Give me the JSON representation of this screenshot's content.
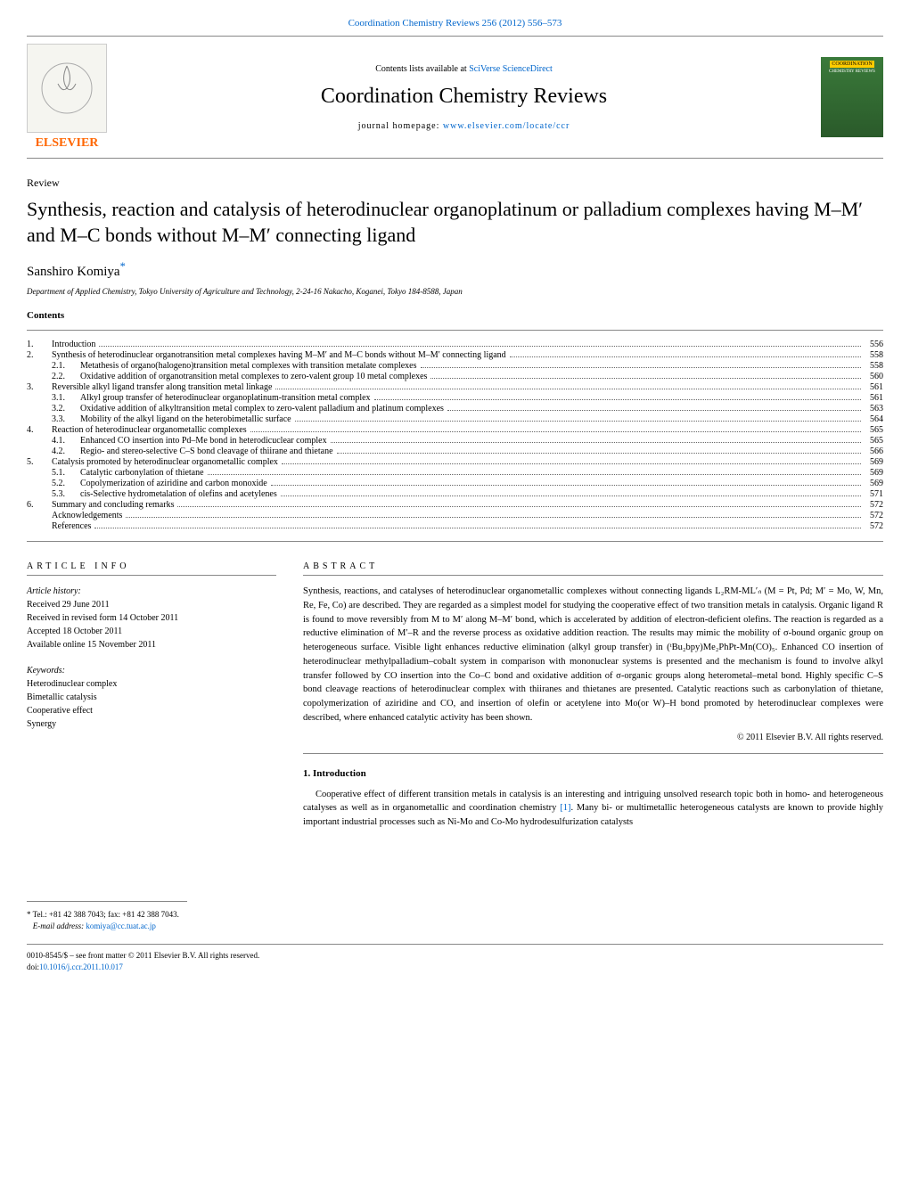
{
  "top_link": "Coordination Chemistry Reviews 256 (2012) 556–573",
  "header": {
    "contents_prefix": "Contents lists available at ",
    "contents_link": "SciVerse ScienceDirect",
    "journal_title": "Coordination Chemistry Reviews",
    "homepage_prefix": "journal homepage: ",
    "homepage_link": "www.elsevier.com/locate/ccr",
    "publisher": "ELSEVIER",
    "cover_label": "COORDINATION",
    "cover_sublabel": "CHEMISTRY REVIEWS"
  },
  "article_type": "Review",
  "title": "Synthesis, reaction and catalysis of heterodinuclear organoplatinum or palladium complexes having M–M′ and M–C bonds without M–M′ connecting ligand",
  "author": "Sanshiro Komiya",
  "author_mark": "*",
  "affiliation": "Department of Applied Chemistry, Tokyo University of Agriculture and Technology, 2-24-16 Nakacho, Koganei, Tokyo 184-8588, Japan",
  "contents_heading": "Contents",
  "toc": [
    {
      "num": "1.",
      "label": "Introduction",
      "page": "556"
    },
    {
      "num": "2.",
      "label": "Synthesis of heterodinuclear organotransition metal complexes having M–M′ and M–C bonds without M–M′ connecting ligand",
      "page": "558"
    },
    {
      "sub": "2.1.",
      "label": "Metathesis of organo(halogeno)transition metal complexes with transition metalate complexes",
      "page": "558"
    },
    {
      "sub": "2.2.",
      "label": "Oxidative addition of organotransition metal complexes to zero-valent group 10 metal complexes",
      "page": "560"
    },
    {
      "num": "3.",
      "label": "Reversible alkyl ligand transfer along transition metal linkage",
      "page": "561"
    },
    {
      "sub": "3.1.",
      "label": "Alkyl group transfer of heterodinuclear organoplatinum-transition metal complex",
      "page": "561"
    },
    {
      "sub": "3.2.",
      "label": "Oxidative addition of alkyltransition metal complex to zero-valent palladium and platinum complexes",
      "page": "563"
    },
    {
      "sub": "3.3.",
      "label": "Mobility of the alkyl ligand on the heterobimetallic surface",
      "page": "564"
    },
    {
      "num": "4.",
      "label": "Reaction of heterodinuclear organometallic complexes",
      "page": "565"
    },
    {
      "sub": "4.1.",
      "label": "Enhanced CO insertion into Pd–Me bond in heterodicuclear complex",
      "page": "565"
    },
    {
      "sub": "4.2.",
      "label": "Regio- and stereo-selective C–S bond cleavage of thiirane and thietane",
      "page": "566"
    },
    {
      "num": "5.",
      "label": "Catalysis promoted by heterodinuclear organometallic complex",
      "page": "569"
    },
    {
      "sub": "5.1.",
      "label": "Catalytic carbonylation of thietane",
      "page": "569"
    },
    {
      "sub": "5.2.",
      "label": "Copolymerization of aziridine and carbon monoxide",
      "page": "569"
    },
    {
      "sub": "5.3.",
      "label": "cis-Selective hydrometalation of olefins and acetylenes",
      "page": "571"
    },
    {
      "num": "6.",
      "label": "Summary and concluding remarks",
      "page": "572"
    },
    {
      "num": "",
      "label": "Acknowledgements",
      "page": "572"
    },
    {
      "num": "",
      "label": "References",
      "page": "572"
    }
  ],
  "info_heading": "ARTICLE INFO",
  "abstract_heading": "ABSTRACT",
  "history": {
    "label": "Article history:",
    "received": "Received 29 June 2011",
    "revised": "Received in revised form 14 October 2011",
    "accepted": "Accepted 18 October 2011",
    "online": "Available online 15 November 2011"
  },
  "keywords": {
    "label": "Keywords:",
    "items": [
      "Heterodinuclear complex",
      "Bimetallic catalysis",
      "Cooperative effect",
      "Synergy"
    ]
  },
  "abstract": "Synthesis, reactions, and catalyses of heterodinuclear organometallic complexes without connecting ligands L₂RM-ML′ₙ (M = Pt, Pd; M′ = Mo, W, Mn, Re, Fe, Co) are described. They are regarded as a simplest model for studying the cooperative effect of two transition metals in catalysis. Organic ligand R is found to move reversibly from M to M′ along M–M′ bond, which is accelerated by addition of electron-deficient olefins. The reaction is regarded as a reductive elimination of M′–R and the reverse process as oxidative addition reaction. The results may mimic the mobility of σ-bound organic group on heterogeneous surface. Visible light enhances reductive elimination (alkyl group transfer) in (ᵗBu₂bpy)Me₂PhPt-Mn(CO)₅. Enhanced CO insertion of heterodinuclear methylpalladium–cobalt system in comparison with mononuclear systems is presented and the mechanism is found to involve alkyl transfer followed by CO insertion into the Co–C bond and oxidative addition of σ-organic groups along heterometal–metal bond. Highly specific C–S bond cleavage reactions of heterodinuclear complex with thiiranes and thietanes are presented. Catalytic reactions such as carbonylation of thietane, copolymerization of aziridine and CO, and insertion of olefin or acetylene into Mo(or W)–H bond promoted by heterodinuclear complexes were described, where enhanced catalytic activity has been shown.",
  "copyright": "© 2011 Elsevier B.V. All rights reserved.",
  "intro": {
    "heading": "1. Introduction",
    "text_prefix": "Cooperative effect of different transition metals in catalysis is an interesting and intriguing unsolved research topic both in homo- and heterogeneous catalyses as well as in organometallic and coordination chemistry ",
    "ref": "[1]",
    "text_suffix": ". Many bi- or multimetallic heterogeneous catalysts are known to provide highly important industrial processes such as Ni-Mo and Co-Mo hydrodesulfurization catalysts"
  },
  "corr": {
    "star": "*",
    "tel": " Tel.: +81 42 388 7043; fax: +81 42 388 7043.",
    "email_label": "E-mail address: ",
    "email": "komiya@cc.tuat.ac.jp"
  },
  "bottom": {
    "issn": "0010-8545/$ – see front matter © 2011 Elsevier B.V. All rights reserved.",
    "doi_prefix": "doi:",
    "doi": "10.1016/j.ccr.2011.10.017"
  }
}
